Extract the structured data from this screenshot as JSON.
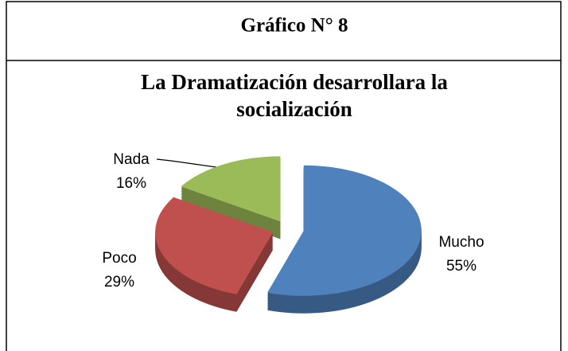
{
  "header": {
    "title": "Gráfico N° 8"
  },
  "chart_data": {
    "type": "pie",
    "title": [
      "La Dramatización desarrollara la",
      "socialización"
    ],
    "categories": [
      "Mucho",
      "Poco",
      "Nada"
    ],
    "values": [
      55,
      29,
      16
    ],
    "value_labels": [
      "55%",
      "29%",
      "16%"
    ],
    "colors": [
      "#4f81bd",
      "#c0504d",
      "#9bbb59"
    ]
  }
}
